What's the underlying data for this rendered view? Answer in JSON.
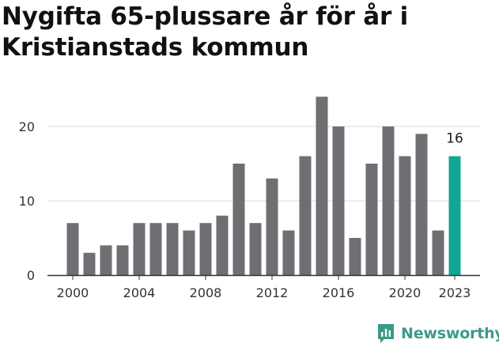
{
  "title": "Nygifta 65-plussare år för år i Kristianstads kommun",
  "brand": {
    "name": "Newsworthy",
    "color": "#3c9a8a"
  },
  "colors": {
    "bar": "#6f6e73",
    "highlight": "#12a594",
    "grid": "#d9d9d9",
    "axis": "#333333"
  },
  "chart_data": {
    "type": "bar",
    "title": "Nygifta 65-plussare år för år i Kristianstads kommun",
    "xlabel": "",
    "ylabel": "",
    "categories": [
      2000,
      2001,
      2002,
      2003,
      2004,
      2005,
      2006,
      2007,
      2008,
      2009,
      2010,
      2011,
      2012,
      2013,
      2014,
      2015,
      2016,
      2017,
      2018,
      2019,
      2020,
      2021,
      2022,
      2023
    ],
    "values": [
      7,
      3,
      4,
      4,
      7,
      7,
      7,
      6,
      7,
      8,
      15,
      7,
      13,
      6,
      16,
      24,
      20,
      5,
      15,
      20,
      16,
      19,
      6,
      16
    ],
    "ylim": [
      0,
      25
    ],
    "yticks": [
      0,
      10,
      20
    ],
    "xticks": [
      2000,
      2004,
      2008,
      2012,
      2016,
      2020,
      2023
    ],
    "highlight": 2023,
    "data_labels": [
      {
        "category": 2023,
        "text": "16"
      }
    ],
    "grid": true
  }
}
